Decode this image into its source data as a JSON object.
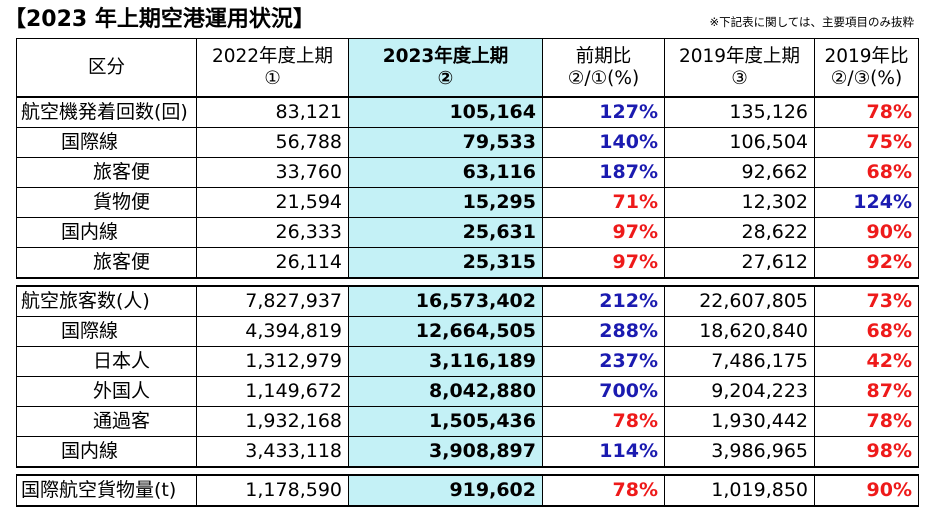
{
  "title": "【2023 年上期空港運用状況】",
  "note": "※下記表に関しては、主要項目のみ抜粋",
  "headers": [
    {
      "line1": "区分",
      "line2": ""
    },
    {
      "line1": "2022年度上期",
      "line2": "①"
    },
    {
      "line1": "2023年度上期",
      "line2": "②"
    },
    {
      "line1": "前期比",
      "line2": "②/①(%)"
    },
    {
      "line1": "2019年度上期",
      "line2": "③"
    },
    {
      "line1": "2019年比",
      "line2": "②/③(%)"
    }
  ],
  "sections": [
    {
      "rows": [
        {
          "label": "航空機発着回数(回)",
          "indent": 0,
          "v2022": "83,121",
          "v2023": "105,164",
          "yoy": "127%",
          "yoy_dir": "up",
          "v2019": "135,126",
          "vs2019": "78%",
          "vs2019_dir": "down"
        },
        {
          "label": "国際線",
          "indent": 1,
          "v2022": "56,788",
          "v2023": "79,533",
          "yoy": "140%",
          "yoy_dir": "up",
          "v2019": "106,504",
          "vs2019": "75%",
          "vs2019_dir": "down"
        },
        {
          "label": "旅客便",
          "indent": 2,
          "v2022": "33,760",
          "v2023": "63,116",
          "yoy": "187%",
          "yoy_dir": "up",
          "v2019": "92,662",
          "vs2019": "68%",
          "vs2019_dir": "down"
        },
        {
          "label": "貨物便",
          "indent": 2,
          "v2022": "21,594",
          "v2023": "15,295",
          "yoy": "71%",
          "yoy_dir": "down",
          "v2019": "12,302",
          "vs2019": "124%",
          "vs2019_dir": "up"
        },
        {
          "label": "国内線",
          "indent": 1,
          "v2022": "26,333",
          "v2023": "25,631",
          "yoy": "97%",
          "yoy_dir": "down",
          "v2019": "28,622",
          "vs2019": "90%",
          "vs2019_dir": "down"
        },
        {
          "label": "旅客便",
          "indent": 2,
          "v2022": "26,114",
          "v2023": "25,315",
          "yoy": "97%",
          "yoy_dir": "down",
          "v2019": "27,612",
          "vs2019": "92%",
          "vs2019_dir": "down"
        }
      ]
    },
    {
      "rows": [
        {
          "label": "航空旅客数(人)",
          "indent": 0,
          "v2022": "7,827,937",
          "v2023": "16,573,402",
          "yoy": "212%",
          "yoy_dir": "up",
          "v2019": "22,607,805",
          "vs2019": "73%",
          "vs2019_dir": "down"
        },
        {
          "label": "国際線",
          "indent": 1,
          "v2022": "4,394,819",
          "v2023": "12,664,505",
          "yoy": "288%",
          "yoy_dir": "up",
          "v2019": "18,620,840",
          "vs2019": "68%",
          "vs2019_dir": "down"
        },
        {
          "label": "日本人",
          "indent": 2,
          "v2022": "1,312,979",
          "v2023": "3,116,189",
          "yoy": "237%",
          "yoy_dir": "up",
          "v2019": "7,486,175",
          "vs2019": "42%",
          "vs2019_dir": "down"
        },
        {
          "label": "外国人",
          "indent": 2,
          "v2022": "1,149,672",
          "v2023": "8,042,880",
          "yoy": "700%",
          "yoy_dir": "up",
          "v2019": "9,204,223",
          "vs2019": "87%",
          "vs2019_dir": "down"
        },
        {
          "label": "通過客",
          "indent": 2,
          "v2022": "1,932,168",
          "v2023": "1,505,436",
          "yoy": "78%",
          "yoy_dir": "down",
          "v2019": "1,930,442",
          "vs2019": "78%",
          "vs2019_dir": "down"
        },
        {
          "label": "国内線",
          "indent": 1,
          "v2022": "3,433,118",
          "v2023": "3,908,897",
          "yoy": "114%",
          "yoy_dir": "up",
          "v2019": "3,986,965",
          "vs2019": "98%",
          "vs2019_dir": "down"
        }
      ]
    },
    {
      "rows": [
        {
          "label": "国際航空貨物量(t)",
          "indent": 0,
          "v2022": "1,178,590",
          "v2023": "919,602",
          "yoy": "78%",
          "yoy_dir": "down",
          "v2019": "1,019,850",
          "vs2019": "90%",
          "vs2019_dir": "down"
        }
      ]
    }
  ],
  "colors": {
    "highlight": "#c4f1f6",
    "up": "#1b1bb0",
    "down": "#ee1a1a"
  }
}
